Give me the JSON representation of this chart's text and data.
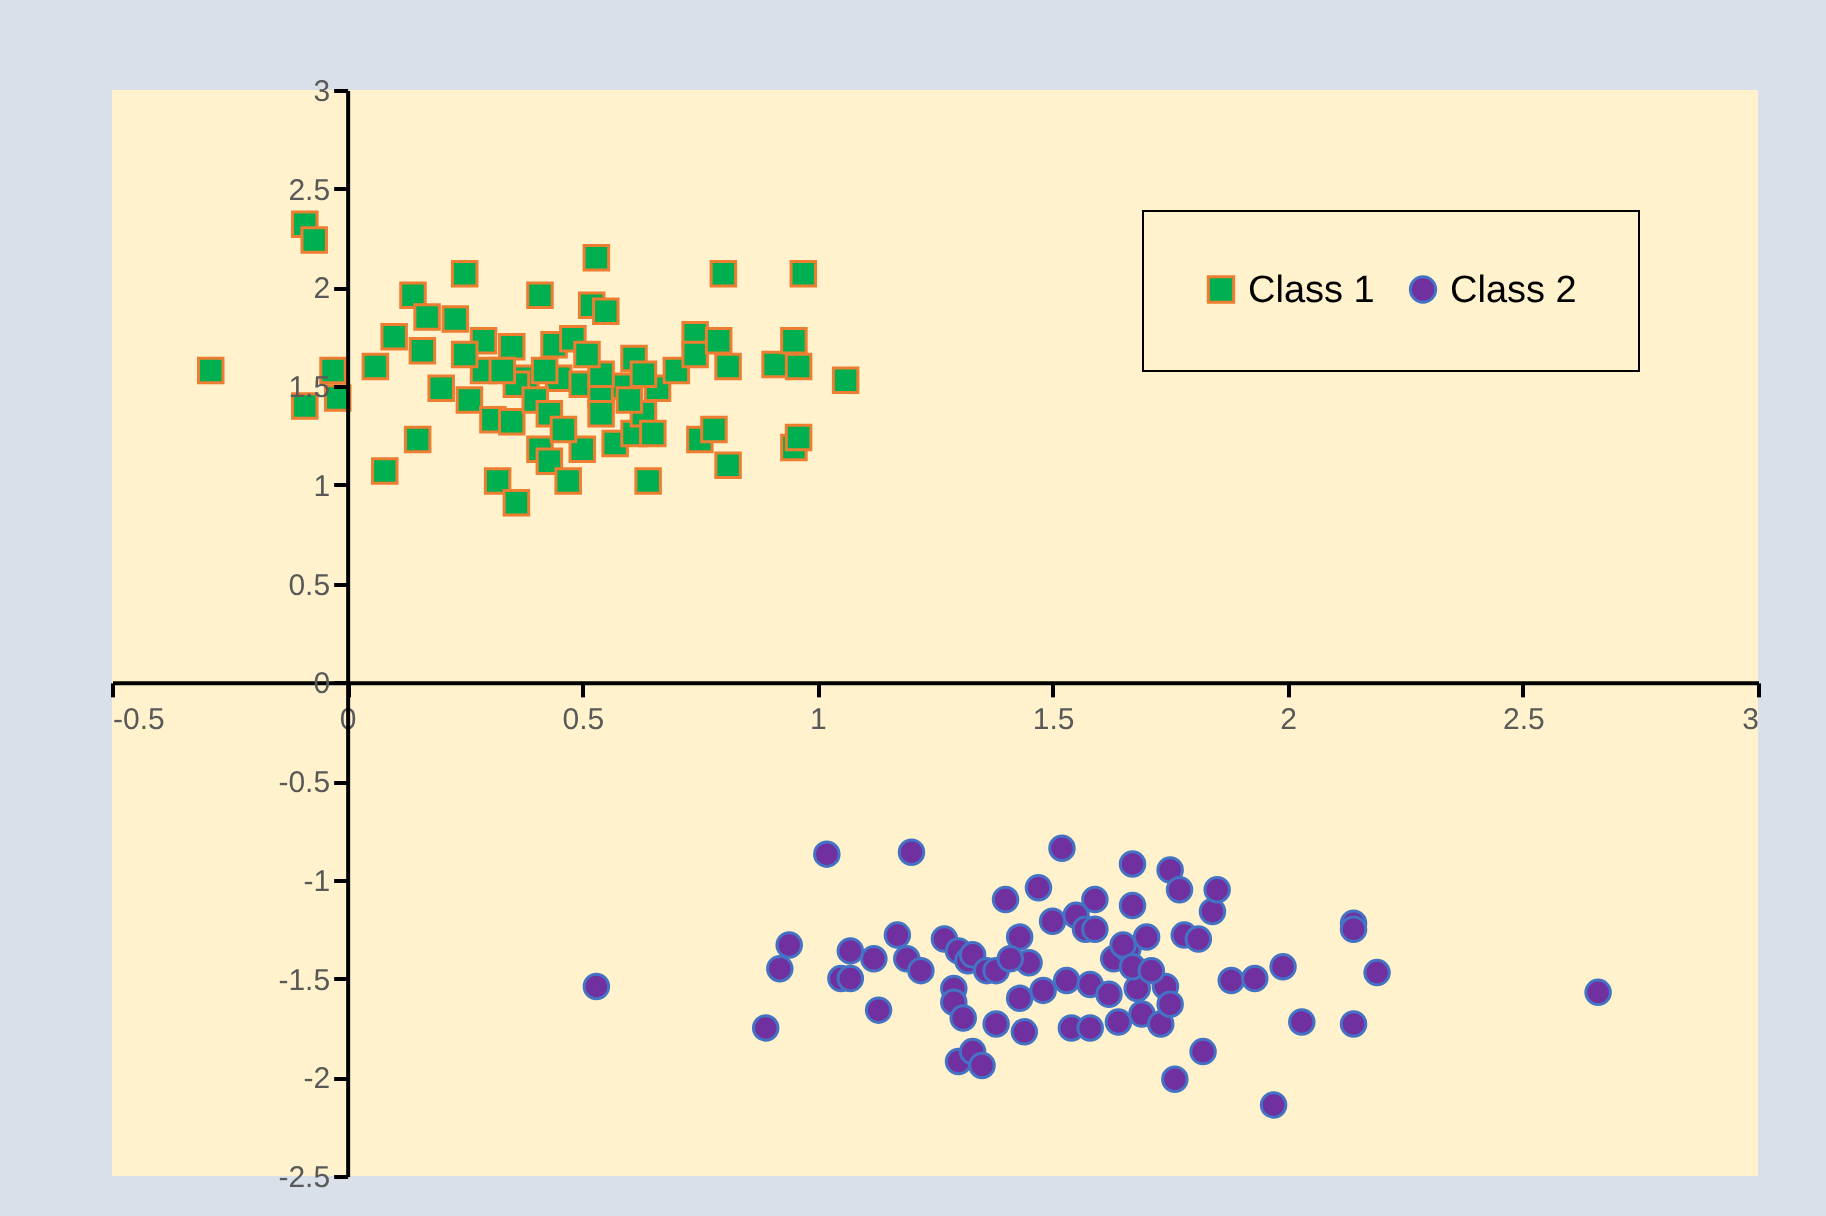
{
  "chart_data": {
    "type": "scatter",
    "xlim": [
      -0.5,
      3
    ],
    "ylim": [
      -2.5,
      3
    ],
    "xticks": [
      -0.5,
      0,
      0.5,
      1,
      1.5,
      2,
      2.5,
      3
    ],
    "yticks": [
      -2.5,
      -2,
      -1.5,
      -1,
      -0.5,
      0,
      0.5,
      1,
      1.5,
      2,
      2.5,
      3
    ],
    "grid": false,
    "legend": "top right",
    "series": [
      {
        "name": "Class 1",
        "color": "#00b050",
        "marker": "square",
        "x": [
          -0.09,
          -0.07,
          -0.29,
          -0.09,
          -0.03,
          -0.02,
          0.06,
          0.08,
          0.14,
          0.15,
          0.1,
          0.17,
          0.23,
          0.25,
          0.2,
          0.26,
          0.29,
          0.29,
          0.31,
          0.32,
          0.35,
          0.35,
          0.36,
          0.38,
          0.41,
          0.41,
          0.43,
          0.44,
          0.45,
          0.47,
          0.48,
          0.5,
          0.5,
          0.52,
          0.53,
          0.54,
          0.55,
          0.57,
          0.59,
          0.61,
          0.61,
          0.63,
          0.64,
          0.66,
          0.7,
          0.74,
          0.74,
          0.75,
          0.78,
          0.79,
          0.8,
          0.81,
          0.81,
          0.91,
          0.95,
          0.96,
          0.95,
          0.96,
          0.97,
          1.06,
          0.54,
          0.36,
          0.4,
          0.43,
          0.6,
          0.54,
          0.65,
          0.46,
          0.25,
          0.16,
          0.33,
          0.51,
          0.42,
          0.63
        ],
        "values": [
          2.32,
          2.24,
          1.58,
          1.4,
          1.58,
          1.44,
          1.6,
          1.07,
          1.96,
          1.23,
          1.75,
          1.85,
          1.84,
          2.07,
          1.49,
          1.43,
          1.73,
          1.58,
          1.33,
          1.02,
          1.7,
          1.32,
          0.91,
          1.54,
          1.18,
          1.96,
          1.12,
          1.71,
          1.54,
          1.02,
          1.74,
          1.51,
          1.18,
          1.91,
          2.15,
          1.46,
          1.88,
          1.21,
          1.5,
          1.26,
          1.64,
          1.36,
          1.02,
          1.49,
          1.58,
          1.76,
          1.66,
          1.23,
          1.28,
          1.73,
          2.07,
          1.6,
          1.1,
          1.61,
          1.73,
          1.6,
          1.19,
          1.24,
          2.07,
          1.53,
          1.56,
          1.51,
          1.43,
          1.36,
          1.43,
          1.36,
          1.26,
          1.28,
          1.66,
          1.68,
          1.58,
          1.66,
          1.58,
          1.56
        ]
      },
      {
        "name": "Class 2",
        "color": "#7030a0",
        "marker": "circle",
        "x": [
          0.53,
          0.89,
          0.92,
          0.94,
          1.02,
          1.2,
          1.52,
          1.05,
          1.07,
          1.07,
          1.12,
          1.13,
          1.17,
          1.19,
          1.22,
          1.27,
          1.29,
          1.29,
          1.3,
          1.31,
          1.32,
          1.3,
          1.33,
          1.35,
          1.33,
          1.36,
          1.38,
          1.38,
          1.4,
          1.43,
          1.43,
          1.44,
          1.45,
          1.47,
          1.5,
          1.53,
          1.54,
          1.55,
          1.57,
          1.58,
          1.59,
          1.59,
          1.63,
          1.64,
          1.66,
          1.67,
          1.67,
          1.68,
          1.69,
          1.7,
          1.73,
          1.74,
          1.75,
          1.77,
          1.76,
          1.78,
          1.81,
          1.82,
          1.84,
          1.85,
          1.88,
          1.93,
          1.99,
          1.97,
          2.03,
          2.14,
          2.14,
          2.14,
          2.19,
          2.66,
          1.58,
          1.62,
          1.65,
          1.67,
          1.71,
          1.75,
          1.41,
          1.48
        ],
        "values": [
          -1.54,
          -1.75,
          -1.45,
          -1.33,
          -0.87,
          -0.86,
          -0.84,
          -1.5,
          -1.5,
          -1.36,
          -1.4,
          -1.66,
          -1.28,
          -1.4,
          -1.46,
          -1.3,
          -1.55,
          -1.62,
          -1.36,
          -1.7,
          -1.41,
          -1.92,
          -1.87,
          -1.94,
          -1.38,
          -1.46,
          -1.46,
          -1.73,
          -1.1,
          -1.29,
          -1.6,
          -1.77,
          -1.42,
          -1.04,
          -1.21,
          -1.51,
          -1.75,
          -1.18,
          -1.25,
          -1.75,
          -1.25,
          -1.1,
          -1.4,
          -1.72,
          -1.35,
          -0.92,
          -1.13,
          -1.55,
          -1.68,
          -1.29,
          -1.73,
          -1.54,
          -0.95,
          -1.05,
          -2.01,
          -1.28,
          -1.3,
          -1.87,
          -1.16,
          -1.05,
          -1.51,
          -1.5,
          -1.44,
          -2.14,
          -1.72,
          -1.22,
          -1.25,
          -1.73,
          -1.47,
          -1.57,
          -1.53,
          -1.58,
          -1.33,
          -1.44,
          -1.46,
          -1.63,
          -1.4,
          -1.56
        ]
      }
    ]
  }
}
